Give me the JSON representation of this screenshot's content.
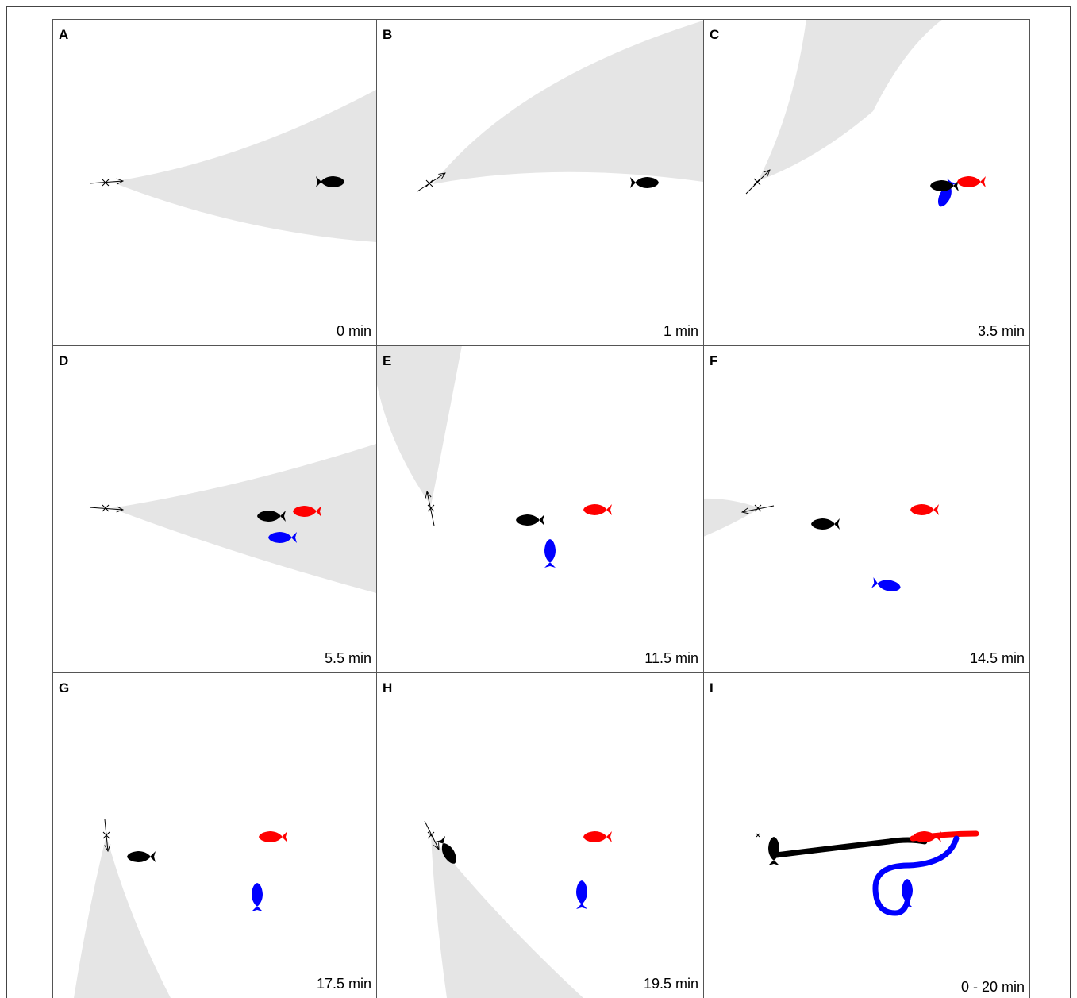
{
  "panels": [
    {
      "label": "A",
      "time": "0 min"
    },
    {
      "label": "B",
      "time": "1 min"
    },
    {
      "label": "C",
      "time": "3.5 min"
    },
    {
      "label": "D",
      "time": "5.5 min"
    },
    {
      "label": "E",
      "time": "11.5 min"
    },
    {
      "label": "F",
      "time": "14.5 min"
    },
    {
      "label": "G",
      "time": "17.5 min"
    },
    {
      "label": "H",
      "time": "19.5 min"
    },
    {
      "label": "I",
      "time": "0 - 20 min"
    }
  ]
}
